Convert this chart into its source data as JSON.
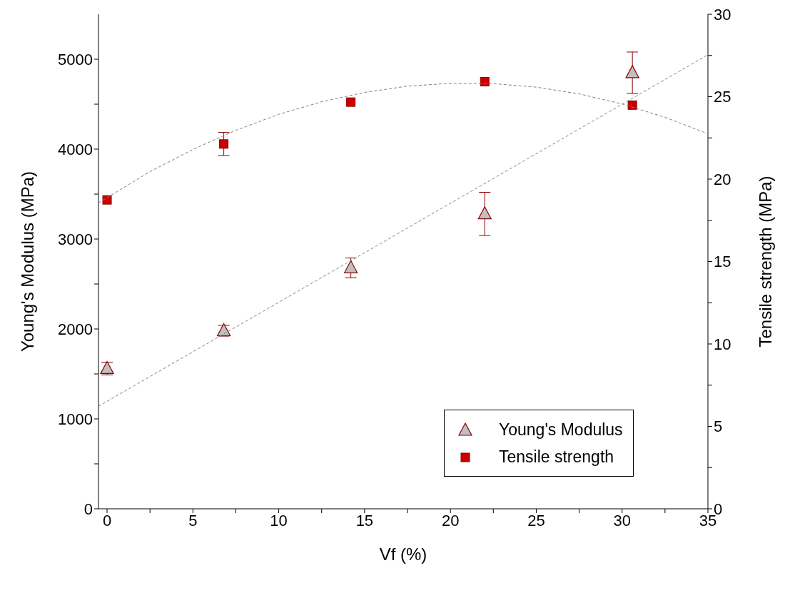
{
  "chart_data": {
    "type": "scatter",
    "xlabel": "Vf (%)",
    "ylabel": "Young's Modulus (MPa)",
    "y2label": "Tensile strength (MPa)",
    "xlim": [
      -0.5,
      35
    ],
    "xticks": [
      0,
      {
        "value": 2.5,
        "label": null
      },
      5,
      {
        "value": 7.5,
        "label": null
      },
      10,
      {
        "value": 12.5,
        "label": null
      },
      15,
      {
        "value": 17.5,
        "label": null
      },
      20,
      {
        "value": 22.5,
        "label": null
      },
      25,
      {
        "value": 27.5,
        "label": null
      },
      30,
      {
        "value": 32.5,
        "label": null
      },
      35
    ],
    "ylim": [
      0,
      5500
    ],
    "yticks": [
      0,
      {
        "value": 500,
        "label": null
      },
      1000,
      {
        "value": 1500,
        "label": null
      },
      2000,
      {
        "value": 2500,
        "label": null
      },
      3000,
      {
        "value": 3500,
        "label": null
      },
      4000,
      {
        "value": 4500,
        "label": null
      },
      5000
    ],
    "y2lim": [
      0,
      30
    ],
    "y2ticks": [
      0,
      {
        "value": 2.5,
        "label": null
      },
      5,
      {
        "value": 7.5,
        "label": null
      },
      10,
      {
        "value": 12.5,
        "label": null
      },
      15,
      {
        "value": 17.5,
        "label": null
      },
      20,
      {
        "value": 22.5,
        "label": null
      },
      25,
      {
        "value": 27.5,
        "label": null
      },
      30
    ],
    "legend": "bottom right",
    "grid": false,
    "series": [
      {
        "name": "Young's Modulus",
        "marker": "triangle",
        "color": "#c0c0c0",
        "x": [
          0,
          6.8,
          14.2,
          22,
          30.6
        ],
        "values": [
          1560,
          1980,
          2680,
          3280,
          4850
        ],
        "errors": [
          70,
          60,
          110,
          240,
          230
        ]
      },
      {
        "name": "Tensile strength",
        "marker": "square",
        "axis": "y2",
        "color": "#cc0000",
        "x": [
          0,
          6.8,
          14.2,
          22,
          30.6
        ],
        "values": [
          18.74,
          22.13,
          24.67,
          25.91,
          24.49
        ],
        "errors": [
          null,
          0.7,
          null,
          null,
          null
        ]
      },
      {
        "type": "line",
        "color": "#808080",
        "line_style": "dashed",
        "marker": "none",
        "x": [
          -0.5,
          35
        ],
        "values": [
          1140,
          5050
        ]
      },
      {
        "type": "line",
        "axis": "y2",
        "color": "#808080",
        "line_style": "dashed",
        "marker": "none",
        "x": [
          -0.5,
          2.5,
          5,
          7.5,
          10,
          12.5,
          15,
          17.5,
          20,
          22.5,
          25,
          27.5,
          30,
          32.5,
          35
        ],
        "values": [
          18.56,
          20.45,
          21.8,
          22.96,
          23.93,
          24.69,
          25.26,
          25.64,
          25.81,
          25.79,
          25.58,
          25.17,
          24.56,
          23.75,
          22.75
        ]
      }
    ]
  }
}
